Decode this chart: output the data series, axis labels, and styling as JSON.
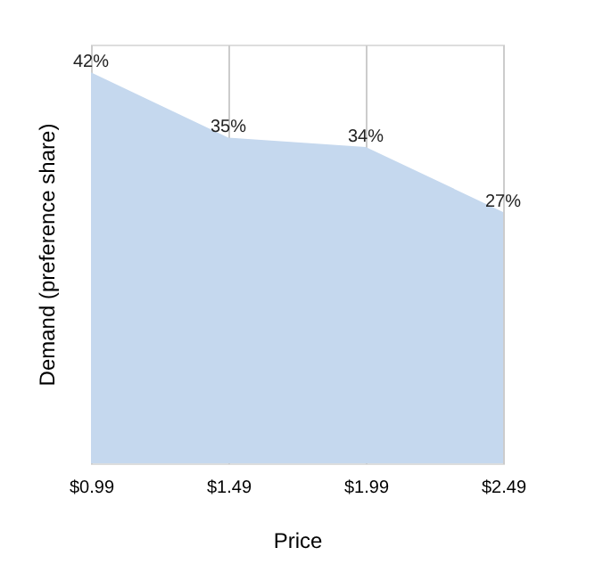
{
  "chart_data": {
    "type": "area",
    "xlabel": "Price",
    "ylabel": "Demand (preference share)",
    "categories": [
      "$0.99",
      "$1.49",
      "$1.99",
      "$2.49"
    ],
    "values": [
      42,
      35,
      34,
      27
    ],
    "value_labels": [
      "42%",
      "35%",
      "34%",
      "27%"
    ],
    "color": "#c5d8ee",
    "grid": "x",
    "tick_labels": "x"
  }
}
